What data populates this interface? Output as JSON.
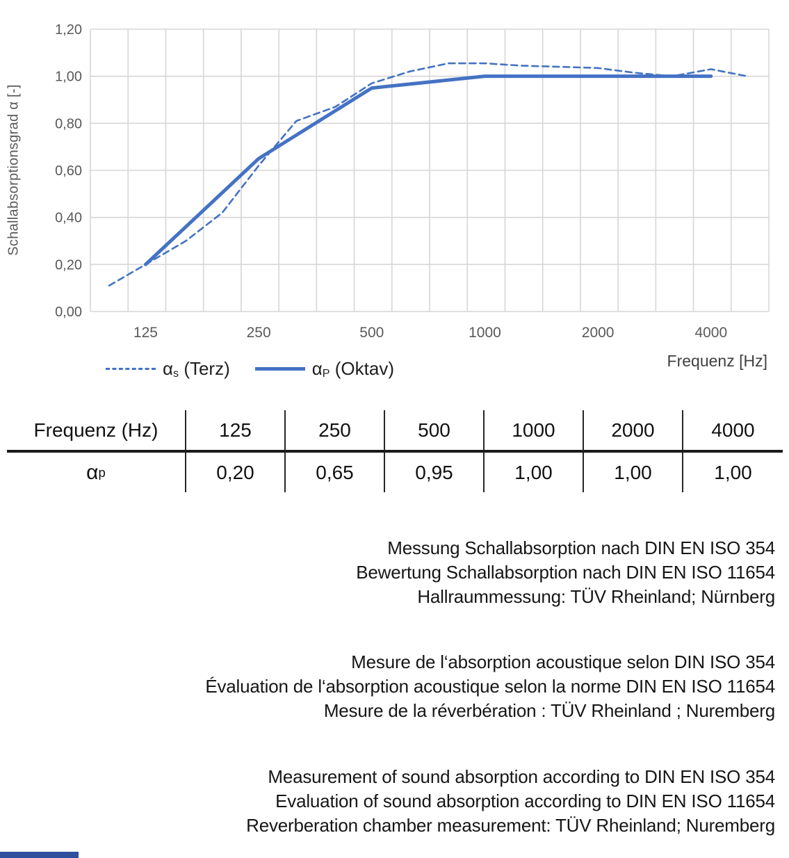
{
  "chart": {
    "y_axis_title": "Schallabsorptionsgrad α [-]",
    "x_axis_title": "Frequenz [Hz]",
    "y_ticks": [
      "0,00",
      "0,20",
      "0,40",
      "0,60",
      "0,80",
      "1,00",
      "1,20"
    ],
    "x_ticks": [
      "125",
      "250",
      "500",
      "1000",
      "2000",
      "4000"
    ],
    "legend": [
      {
        "alpha": "α",
        "sub": "s",
        "rest": " (Terz)",
        "style": "dashed"
      },
      {
        "alpha": "α",
        "sub": "P",
        "rest": " (Oktav)",
        "style": "solid"
      }
    ]
  },
  "chart_data": {
    "type": "line",
    "title": "",
    "xlabel": "Frequenz [Hz]",
    "ylabel": "Schallabsorptionsgrad α [-]",
    "x_scale": "log",
    "xlim": [
      89.1,
      5702
    ],
    "ylim": [
      0,
      1.2
    ],
    "y_tick_step": 0.2,
    "x_tick_values": [
      125,
      250,
      500,
      1000,
      2000,
      4000
    ],
    "grid": true,
    "legend_position": "bottom-left",
    "series": [
      {
        "name": "αs (Terz)",
        "style": "dashed",
        "x": [
          100,
          125,
          160,
          200,
          250,
          315,
          400,
          500,
          630,
          800,
          1000,
          1250,
          1600,
          2000,
          2500,
          3150,
          4000,
          5000
        ],
        "y": [
          0.11,
          0.2,
          0.3,
          0.42,
          0.62,
          0.81,
          0.87,
          0.97,
          1.02,
          1.055,
          1.055,
          1.045,
          1.04,
          1.035,
          1.015,
          1.0,
          1.03,
          1.0
        ]
      },
      {
        "name": "αP (Oktav)",
        "style": "solid",
        "x": [
          125,
          250,
          500,
          1000,
          2000,
          4000
        ],
        "y": [
          0.2,
          0.65,
          0.95,
          1.0,
          1.0,
          1.0
        ]
      }
    ],
    "colors": {
      "line": "#4472C4",
      "grid": "#d6d6d6",
      "tick_text": "#595959"
    }
  },
  "table": {
    "header_label": "Frequenz (Hz)",
    "columns": [
      "125",
      "250",
      "500",
      "1000",
      "2000",
      "4000"
    ],
    "row_label": {
      "base": "α",
      "sub": "p"
    },
    "values": [
      "0,20",
      "0,65",
      "0,95",
      "1,00",
      "1,00",
      "1,00"
    ]
  },
  "paragraphs": {
    "de": [
      "Messung Schallabsorption nach DIN EN ISO 354",
      "Bewertung Schallabsorption nach DIN EN ISO 11654",
      "Hallraummessung: TÜV Rheinland; Nürnberg"
    ],
    "fr": [
      "Mesure de l‘absorption acoustique selon DIN ISO 354",
      "Évaluation de l‘absorption acoustique selon la norme DIN EN ISO 11654",
      "Mesure de la réverbération : TÜV Rheinland ; Nuremberg"
    ],
    "en": [
      "Measurement of sound absorption according to DIN EN ISO 354",
      "Evaluation of sound absorption according to DIN EN ISO 11654",
      "Reverberation chamber measurement: TÜV Rheinland; Nuremberg"
    ]
  },
  "footer": {
    "accent_color": "#2E4E9E"
  }
}
